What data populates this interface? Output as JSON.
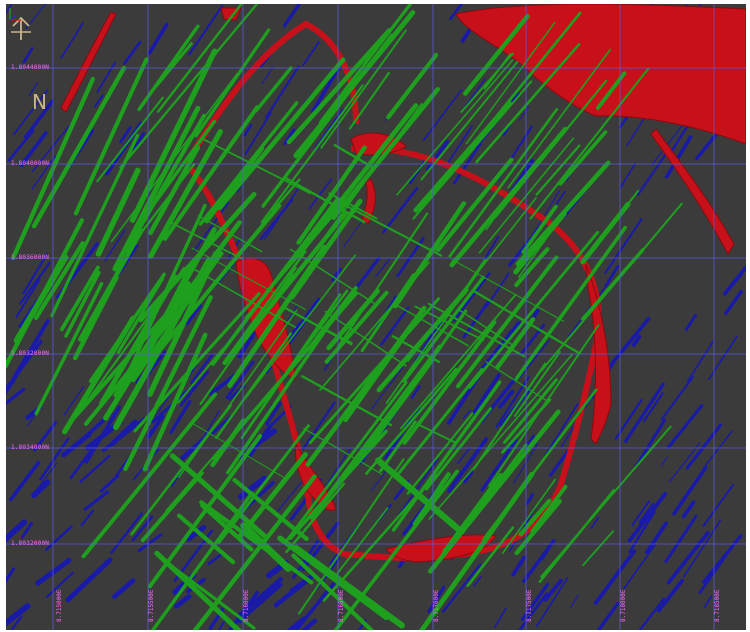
{
  "north_label": "N",
  "northing_labels": [
    "1.8044000N",
    "1.8040000N",
    "1.8036000N",
    "1.8032000N",
    "1.8034000N",
    "1.8032000N"
  ],
  "easting_labels": [
    "8.715000E",
    "8.715500E",
    "8.716000E",
    "8.716500E",
    "8.717000E",
    "8.717500E",
    "8.718000E",
    "8.718500E"
  ],
  "colors": {
    "background": "#3b3b3b",
    "grid": "#5a5ae0",
    "label": "#ff66ff",
    "red_body": "#c8101a",
    "green_veins": "#1ea01e",
    "blue_veins": "#1a1aa8",
    "north_arrow": "#c9b58a"
  },
  "icons": [
    "north-arrow-icon",
    "axes-triad-icon"
  ]
}
